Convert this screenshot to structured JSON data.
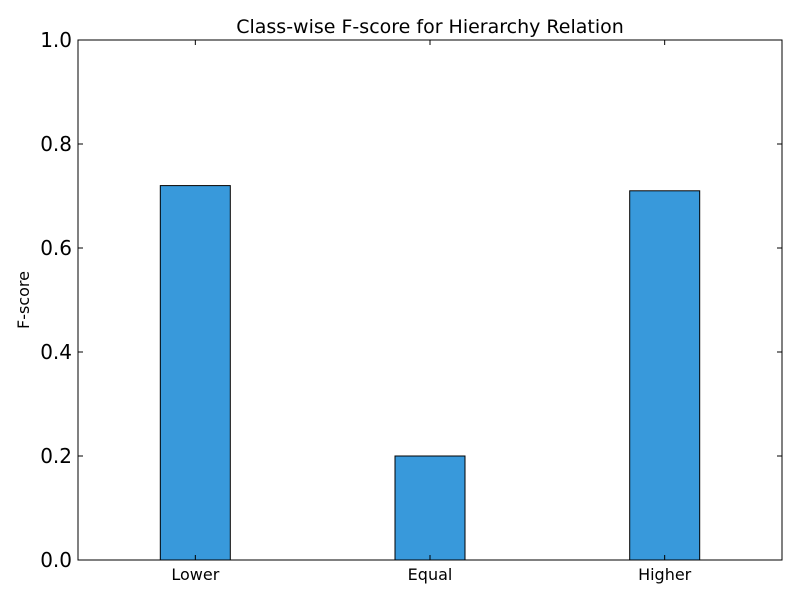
{
  "chart_data": {
    "type": "bar",
    "title": "Class-wise F-score for Hierarchy Relation",
    "xlabel": "",
    "ylabel": "F-score",
    "categories": [
      "Lower",
      "Equal",
      "Higher"
    ],
    "values": [
      0.72,
      0.2,
      0.71
    ],
    "ylim": [
      0,
      1.0
    ],
    "yticks": [
      "0.0",
      "0.2",
      "0.4",
      "0.6",
      "0.8",
      "1.0"
    ],
    "bar_color": "#3899db",
    "grid": false,
    "legend": "none"
  }
}
